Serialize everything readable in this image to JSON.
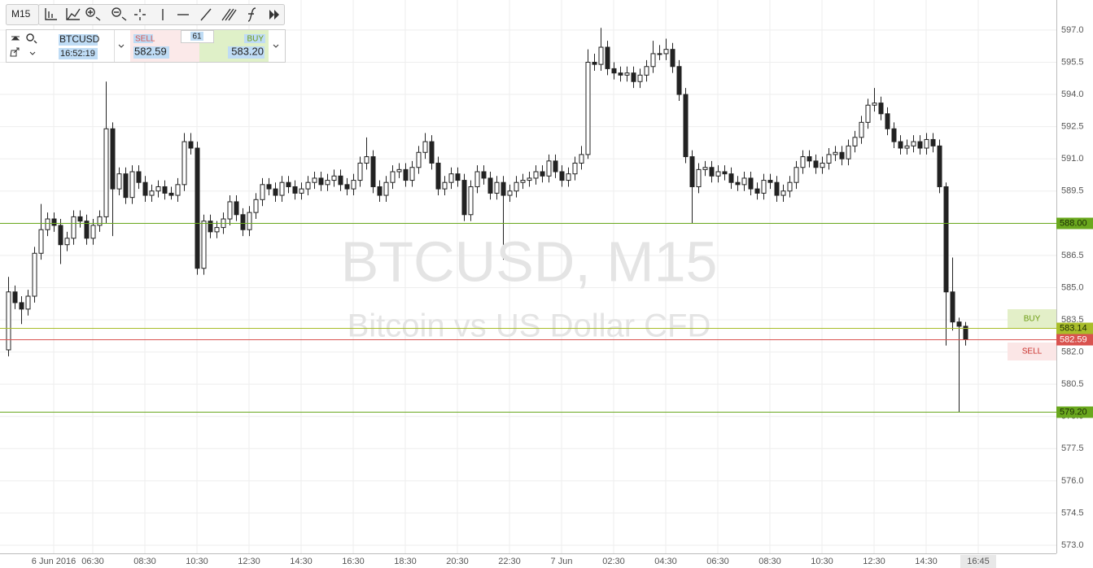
{
  "toolbar": {
    "interval": "M15"
  },
  "trade_panel": {
    "symbol": "BTCUSD",
    "time": "16:52:19",
    "sell_label": "SELL",
    "sell_price": "582.59",
    "spread": "61",
    "buy_label": "BUY",
    "buy_price": "583.20"
  },
  "order_buttons": {
    "buy": "BUY",
    "sell": "SELL"
  },
  "chart_data": {
    "type": "candlestick",
    "title": "BTCUSD, M15",
    "subtitle": "Bitcoin vs US Dollar CFD",
    "up_color": "#ffffff",
    "down_color": "#222222",
    "outline_color": "#222222",
    "open": [
      582.1,
      584.8,
      584.3,
      584.0,
      584.6,
      586.6,
      587.7,
      588.2,
      587.9,
      587.0,
      587.3,
      588.3,
      588.1,
      587.3,
      587.9,
      588.3,
      592.4,
      589.6,
      590.3,
      589.2,
      590.4,
      589.9,
      589.3,
      589.5,
      589.7,
      589.4,
      589.3,
      589.8,
      591.8,
      591.5,
      585.9,
      588.1,
      587.6,
      587.8,
      588.2,
      589.0,
      588.4,
      587.7,
      588.5,
      589.1,
      589.8,
      589.6,
      589.3,
      589.9,
      589.7,
      589.4,
      589.6,
      589.9,
      590.1,
      589.8,
      590.0,
      590.2,
      589.8,
      589.6,
      590.0,
      590.8,
      591.1,
      589.7,
      589.3,
      589.9,
      590.4,
      590.5,
      590.0,
      590.6,
      591.3,
      591.8,
      590.8,
      589.6,
      589.9,
      590.3,
      590.0,
      588.4,
      589.7,
      590.4,
      590.1,
      589.4,
      589.9,
      589.3,
      589.5,
      589.9,
      590.0,
      590.1,
      590.4,
      590.2,
      590.9,
      590.4,
      590.0,
      590.3,
      590.8,
      591.2,
      595.5,
      595.4,
      596.2,
      595.2,
      595.0,
      594.9,
      595.0,
      594.6,
      594.9,
      595.3,
      595.9,
      595.9,
      596.1,
      595.3,
      594.0,
      591.1,
      589.7,
      590.5,
      590.6,
      590.2,
      590.4,
      590.3,
      589.9,
      589.8,
      590.1,
      589.6,
      589.4,
      590.0,
      589.9,
      589.3,
      589.5,
      589.9,
      590.6,
      591.1,
      590.9,
      590.6,
      590.8,
      591.2,
      591.3,
      591.0,
      591.6,
      592.0,
      592.7,
      593.5,
      593.6,
      593.1,
      592.4,
      591.8,
      591.5,
      591.6,
      591.8,
      591.5,
      591.9,
      591.6,
      589.7,
      584.8,
      583.4,
      583.2
    ],
    "high": [
      585.5,
      585.1,
      584.6,
      584.9,
      586.9,
      588.9,
      588.5,
      588.5,
      588.2,
      587.6,
      588.6,
      588.6,
      588.4,
      588.2,
      588.6,
      594.6,
      592.7,
      590.6,
      590.6,
      590.7,
      590.7,
      590.2,
      589.8,
      590.0,
      590.0,
      589.7,
      590.1,
      592.2,
      592.2,
      591.8,
      588.4,
      588.4,
      588.1,
      588.5,
      589.3,
      589.3,
      588.7,
      588.8,
      589.4,
      590.1,
      590.1,
      589.9,
      590.2,
      590.2,
      590.0,
      589.9,
      590.2,
      590.4,
      590.4,
      590.3,
      590.5,
      590.5,
      590.1,
      590.3,
      591.1,
      592.0,
      591.4,
      590.0,
      590.2,
      590.7,
      590.8,
      590.8,
      590.9,
      591.6,
      592.2,
      592.1,
      591.1,
      590.2,
      590.6,
      590.6,
      590.3,
      590.0,
      590.7,
      590.7,
      590.4,
      590.2,
      590.2,
      589.8,
      590.2,
      590.3,
      590.4,
      590.7,
      590.7,
      591.2,
      591.2,
      590.7,
      590.6,
      591.1,
      591.6,
      596.1,
      595.9,
      597.1,
      596.5,
      595.5,
      595.3,
      595.3,
      595.3,
      595.2,
      595.6,
      596.5,
      596.3,
      596.6,
      596.4,
      595.6,
      594.3,
      591.4,
      590.8,
      590.9,
      590.9,
      590.7,
      590.7,
      590.6,
      590.2,
      590.4,
      590.4,
      589.9,
      590.3,
      590.3,
      590.2,
      589.8,
      590.2,
      590.9,
      591.4,
      591.4,
      591.2,
      591.1,
      591.5,
      591.6,
      591.6,
      591.9,
      592.3,
      593.0,
      593.8,
      594.3,
      593.9,
      593.4,
      592.7,
      592.1,
      591.9,
      592.1,
      592.1,
      592.2,
      592.2,
      591.9,
      589.9,
      586.4,
      583.6,
      583.4
    ],
    "low": [
      581.8,
      584.0,
      583.3,
      583.7,
      584.3,
      586.3,
      587.4,
      587.6,
      586.1,
      586.7,
      587.0,
      587.8,
      587.0,
      587.0,
      587.6,
      588.0,
      587.4,
      589.3,
      588.9,
      588.9,
      589.6,
      589.0,
      589.0,
      589.2,
      589.1,
      589.1,
      589.0,
      589.5,
      591.2,
      585.6,
      585.6,
      587.3,
      587.3,
      587.5,
      587.9,
      588.1,
      587.4,
      587.4,
      588.2,
      588.8,
      589.3,
      589.0,
      589.0,
      589.4,
      589.1,
      589.1,
      589.3,
      589.6,
      589.5,
      589.5,
      589.7,
      589.5,
      589.3,
      589.3,
      589.7,
      590.5,
      589.4,
      589.0,
      589.0,
      589.6,
      590.1,
      589.7,
      589.7,
      590.3,
      591.0,
      590.5,
      589.3,
      589.3,
      589.6,
      589.7,
      588.1,
      588.1,
      589.4,
      589.8,
      589.1,
      589.1,
      586.3,
      589.0,
      589.2,
      589.6,
      589.7,
      589.8,
      589.9,
      589.9,
      590.1,
      589.7,
      589.7,
      590.0,
      590.5,
      591.0,
      595.1,
      595.1,
      594.9,
      594.7,
      594.6,
      594.6,
      594.3,
      594.3,
      594.6,
      595.0,
      595.6,
      595.6,
      595.0,
      593.7,
      590.8,
      588.0,
      589.4,
      590.2,
      589.9,
      589.9,
      590.0,
      589.6,
      589.5,
      589.5,
      589.3,
      589.1,
      589.1,
      589.6,
      589.0,
      589.0,
      589.2,
      589.6,
      590.3,
      590.6,
      590.3,
      590.3,
      590.5,
      590.9,
      590.7,
      590.7,
      591.3,
      591.7,
      592.4,
      593.2,
      592.8,
      592.1,
      591.5,
      591.2,
      591.2,
      591.3,
      591.2,
      591.2,
      591.3,
      589.4,
      582.3,
      583.0,
      579.2,
      582.3
    ],
    "close": [
      584.8,
      584.3,
      584.0,
      584.6,
      586.6,
      587.7,
      588.2,
      587.9,
      587.0,
      587.3,
      588.3,
      588.1,
      587.3,
      587.9,
      588.3,
      592.4,
      589.6,
      590.3,
      589.2,
      590.4,
      589.9,
      589.3,
      589.5,
      589.7,
      589.4,
      589.3,
      589.8,
      591.8,
      591.5,
      585.9,
      588.1,
      587.6,
      587.8,
      588.2,
      589.0,
      588.4,
      587.7,
      588.5,
      589.1,
      589.8,
      589.6,
      589.3,
      589.9,
      589.7,
      589.4,
      589.6,
      589.9,
      590.1,
      589.8,
      590.0,
      590.2,
      589.8,
      589.6,
      590.0,
      590.8,
      591.1,
      589.7,
      589.3,
      589.9,
      590.4,
      590.5,
      590.0,
      590.6,
      591.3,
      591.8,
      590.8,
      589.6,
      589.9,
      590.3,
      590.0,
      588.4,
      589.7,
      590.4,
      590.1,
      589.4,
      589.9,
      589.3,
      589.5,
      589.9,
      590.0,
      590.1,
      590.4,
      590.2,
      590.9,
      590.4,
      590.0,
      590.3,
      590.8,
      591.2,
      595.5,
      595.4,
      596.2,
      595.2,
      595.0,
      594.9,
      595.0,
      594.6,
      594.9,
      595.3,
      595.9,
      595.9,
      596.1,
      595.3,
      594.0,
      591.1,
      589.7,
      590.5,
      590.6,
      590.2,
      590.4,
      590.3,
      589.9,
      589.8,
      590.1,
      589.6,
      589.4,
      590.0,
      589.9,
      589.3,
      589.5,
      589.9,
      590.6,
      591.1,
      590.9,
      590.6,
      590.8,
      591.2,
      591.3,
      591.0,
      591.6,
      592.0,
      592.7,
      593.5,
      593.6,
      593.1,
      592.4,
      591.8,
      591.5,
      591.6,
      591.8,
      591.5,
      591.9,
      591.6,
      589.7,
      584.8,
      583.4,
      583.2,
      582.6
    ],
    "xlim": [
      -1.25,
      161
    ],
    "xticks": [
      {
        "value": 7,
        "label": "6 Jun 2016"
      },
      {
        "value": 13,
        "label": "06:30"
      },
      {
        "value": 21,
        "label": "08:30"
      },
      {
        "value": 29,
        "label": "10:30"
      },
      {
        "value": 37,
        "label": "12:30"
      },
      {
        "value": 45,
        "label": "14:30"
      },
      {
        "value": 53,
        "label": "16:30"
      },
      {
        "value": 61,
        "label": "18:30"
      },
      {
        "value": 69,
        "label": "20:30"
      },
      {
        "value": 77,
        "label": "22:30"
      },
      {
        "value": 85,
        "label": "7 Jun"
      },
      {
        "value": 93,
        "label": "02:30"
      },
      {
        "value": 101,
        "label": "04:30"
      },
      {
        "value": 109,
        "label": "06:30"
      },
      {
        "value": 117,
        "label": "08:30"
      },
      {
        "value": 125,
        "label": "10:30"
      },
      {
        "value": 133,
        "label": "12:30"
      },
      {
        "value": 141,
        "label": "14:30"
      },
      {
        "value": 149,
        "label": "16:45"
      }
    ],
    "ylim": [
      572.62,
      598.4
    ],
    "yticks": [
      {
        "value": 597,
        "label": "597.0"
      },
      595.5,
      {
        "value": 594,
        "label": "594.0"
      },
      592.5,
      {
        "value": 591,
        "label": "591.0"
      },
      589.5,
      {
        "value": 588,
        "label": "588.0"
      },
      586.5,
      {
        "value": 585,
        "label": "585.0"
      },
      583.5,
      {
        "value": 582,
        "label": "582.0"
      },
      580.5,
      {
        "value": 579,
        "label": "579.0"
      },
      577.5,
      {
        "value": 576,
        "label": "576.0"
      },
      574.5,
      {
        "value": 573,
        "label": "573.0"
      }
    ],
    "grid": true,
    "levels": [
      {
        "value": 588,
        "label": "588.00",
        "color": "#6aa81e",
        "label_color": "#1a2a05"
      },
      {
        "value": 583.14,
        "label": "583.14",
        "color": "#a9bd2a",
        "label_color": "#1a2a05"
      },
      {
        "value": 582.59,
        "label": "582.59",
        "color": "#d9534f",
        "label_color": "#ffffff"
      },
      {
        "value": 579.2,
        "label": "579.20",
        "color": "#6aa81e",
        "label_color": "#1a2a05"
      }
    ]
  }
}
